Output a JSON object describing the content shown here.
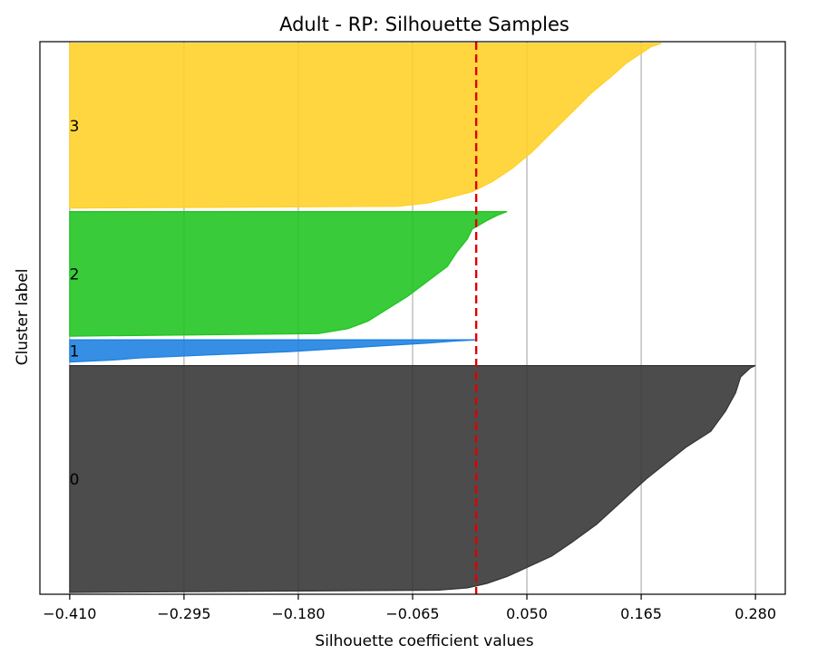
{
  "chart_data": {
    "type": "area",
    "title": "Adult - RP: Silhouette Samples",
    "xlabel": "Silhouette coefficient values",
    "ylabel": "Cluster label",
    "xlim": [
      -0.44,
      0.31
    ],
    "xticks": [
      "-0.410",
      "-0.295",
      "-0.180",
      "-0.065",
      "0.050",
      "0.165",
      "0.280"
    ],
    "xtick_values": [
      -0.41,
      -0.295,
      -0.18,
      -0.065,
      0.05,
      0.165,
      0.28
    ],
    "grid": "x-only",
    "yticks": "none",
    "average_line": {
      "value": -0.001,
      "color": "#e00000",
      "style": "dashed"
    },
    "clusters": [
      {
        "label": "0",
        "color": "#333333",
        "size": 255,
        "profile": [
          [
            0.0,
            -0.41
          ],
          [
            0.01,
            -0.04
          ],
          [
            0.02,
            -0.01
          ],
          [
            0.04,
            0.01
          ],
          [
            0.07,
            0.03
          ],
          [
            0.11,
            0.05
          ],
          [
            0.16,
            0.075
          ],
          [
            0.22,
            0.095
          ],
          [
            0.3,
            0.12
          ],
          [
            0.38,
            0.14
          ],
          [
            0.44,
            0.155
          ],
          [
            0.5,
            0.17
          ],
          [
            0.57,
            0.19
          ],
          [
            0.64,
            0.21
          ],
          [
            0.71,
            0.235
          ],
          [
            0.8,
            0.25
          ],
          [
            0.88,
            0.26
          ],
          [
            0.95,
            0.265
          ],
          [
            0.99,
            0.275
          ],
          [
            1.0,
            0.28
          ]
        ]
      },
      {
        "label": "1",
        "color": "#1a7fe0",
        "size": 25,
        "profile": [
          [
            0.0,
            -0.41
          ],
          [
            0.08,
            -0.37
          ],
          [
            0.18,
            -0.34
          ],
          [
            0.32,
            -0.27
          ],
          [
            0.46,
            -0.19
          ],
          [
            0.6,
            -0.14
          ],
          [
            0.72,
            -0.1
          ],
          [
            0.85,
            -0.05
          ],
          [
            0.95,
            -0.02
          ],
          [
            1.0,
            0.0
          ]
        ]
      },
      {
        "label": "2",
        "color": "#1ec41e",
        "size": 140,
        "profile": [
          [
            0.0,
            -0.41
          ],
          [
            0.02,
            -0.16
          ],
          [
            0.06,
            -0.13
          ],
          [
            0.12,
            -0.11
          ],
          [
            0.22,
            -0.09
          ],
          [
            0.32,
            -0.07
          ],
          [
            0.44,
            -0.05
          ],
          [
            0.56,
            -0.03
          ],
          [
            0.68,
            -0.02
          ],
          [
            0.78,
            -0.01
          ],
          [
            0.86,
            -0.005
          ],
          [
            0.93,
            0.01
          ],
          [
            0.97,
            0.02
          ],
          [
            1.0,
            0.03
          ]
        ]
      },
      {
        "label": "3",
        "color": "#ffd024",
        "size": 185,
        "profile": [
          [
            0.0,
            -0.41
          ],
          [
            0.01,
            -0.08
          ],
          [
            0.03,
            -0.05
          ],
          [
            0.06,
            -0.03
          ],
          [
            0.1,
            -0.005
          ],
          [
            0.16,
            0.015
          ],
          [
            0.24,
            0.035
          ],
          [
            0.34,
            0.055
          ],
          [
            0.46,
            0.075
          ],
          [
            0.58,
            0.095
          ],
          [
            0.7,
            0.115
          ],
          [
            0.8,
            0.135
          ],
          [
            0.88,
            0.15
          ],
          [
            0.94,
            0.165
          ],
          [
            0.98,
            0.175
          ],
          [
            1.0,
            0.185
          ]
        ]
      }
    ]
  }
}
